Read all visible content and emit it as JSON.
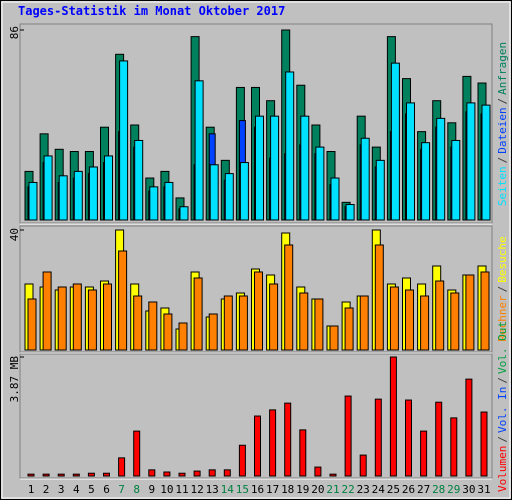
{
  "legend_separator": "/",
  "chart_data": [
    {
      "type": "bar",
      "title": "Tages-Statistik im Monat Oktober 2017",
      "ylim": [
        0,
        86
      ],
      "yticks": [
        86
      ],
      "series": [
        {
          "name": "Anfragen",
          "color": "#00805c",
          "values": [
            22,
            39,
            32,
            31,
            31,
            42,
            75,
            43,
            19,
            22,
            10,
            83,
            42,
            27,
            60,
            60,
            54,
            86,
            61,
            43,
            31,
            8,
            47,
            33,
            83,
            64,
            40,
            54,
            44,
            65,
            62
          ]
        },
        {
          "name": "Dateien",
          "color": "#0040ff",
          "values": [
            15,
            26,
            17,
            19,
            21,
            26,
            40,
            33,
            13,
            15,
            5,
            25,
            39,
            18,
            45,
            42,
            28,
            30,
            34,
            30,
            16,
            6,
            34,
            24,
            40,
            48,
            32,
            42,
            33,
            49,
            48
          ]
        },
        {
          "name": "Seiten",
          "color": "#00e0ff",
          "values": [
            17,
            29,
            20,
            22,
            24,
            29,
            72,
            36,
            15,
            17,
            6,
            63,
            25,
            21,
            26,
            47,
            47,
            67,
            47,
            33,
            19,
            7,
            37,
            27,
            71,
            53,
            35,
            46,
            36,
            53,
            52
          ]
        }
      ]
    },
    {
      "type": "bar",
      "ylim": [
        0,
        40
      ],
      "yticks": [
        40
      ],
      "series": [
        {
          "name": "Besuche",
          "color": "#ffff00",
          "values": [
            22,
            21,
            20,
            21,
            21,
            23,
            40,
            22,
            13,
            14,
            7,
            26,
            11,
            17,
            19,
            27,
            25,
            39,
            21,
            17,
            8,
            16,
            18,
            40,
            22,
            24,
            22,
            28,
            20,
            25,
            28
          ]
        },
        {
          "name": "Rechner",
          "color": "#ff8000",
          "values": [
            17,
            26,
            21,
            22,
            20,
            22,
            33,
            18,
            16,
            12,
            9,
            24,
            12,
            18,
            18,
            26,
            22,
            35,
            19,
            17,
            8,
            14,
            18,
            35,
            21,
            20,
            18,
            23,
            19,
            25,
            26
          ]
        }
      ]
    },
    {
      "type": "bar",
      "ylim": [
        0,
        3.87
      ],
      "yticks": [
        {
          "value": 3.87,
          "label": "3.87 MB"
        }
      ],
      "categories": [
        "1",
        "2",
        "3",
        "4",
        "5",
        "6",
        "7",
        "8",
        "9",
        "10",
        "11",
        "12",
        "13",
        "14",
        "15",
        "16",
        "17",
        "18",
        "19",
        "20",
        "21",
        "22",
        "23",
        "24",
        "25",
        "26",
        "27",
        "28",
        "29",
        "30",
        "31"
      ],
      "label_colors": [
        "#000",
        "#000",
        "#000",
        "#000",
        "#000",
        "#000",
        "#008040",
        "#008040",
        "#000",
        "#000",
        "#000",
        "#000",
        "#000",
        "#008040",
        "#008040",
        "#000",
        "#000",
        "#000",
        "#000",
        "#000",
        "#008040",
        "#008040",
        "#000",
        "#000",
        "#000",
        "#000",
        "#000",
        "#008040",
        "#008040",
        "#000",
        "#000"
      ],
      "series": [
        {
          "name": "Volumen",
          "color": "#ff0000",
          "values": [
            0.06,
            0.06,
            0.06,
            0.06,
            0.09,
            0.09,
            0.59,
            1.46,
            0.2,
            0.13,
            0.09,
            0.16,
            0.2,
            0.2,
            1.0,
            1.95,
            2.15,
            2.37,
            1.5,
            0.29,
            0.06,
            2.6,
            0.68,
            2.5,
            3.87,
            2.47,
            1.46,
            2.4,
            1.89,
            3.15,
            2.08
          ]
        }
      ],
      "extra_legend": [
        {
          "name": "Vol. In",
          "color": "#0040ff"
        },
        {
          "name": "Vol. Out",
          "color": "#00a040"
        }
      ]
    }
  ]
}
